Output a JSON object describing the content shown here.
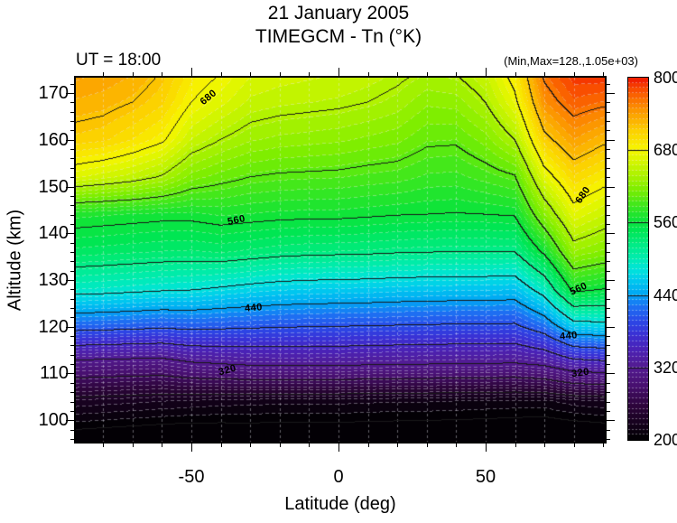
{
  "title": {
    "line1": "21 January 2005",
    "line2": "TIMEGCM - Tn (°K)"
  },
  "header": {
    "ut_label": "UT = 18:00",
    "minmax_label": "(Min,Max=128.,1.05e+03)"
  },
  "axes": {
    "x": {
      "label": "Latitude (deg)",
      "range": [
        -89.3,
        90.5
      ],
      "major_ticks": [
        -50,
        0,
        50
      ],
      "minor_tick_step": 10
    },
    "y": {
      "label": "Altitude (km)",
      "range": [
        95.4,
        173.3
      ],
      "major_ticks": [
        100,
        110,
        120,
        130,
        140,
        150,
        160,
        170
      ],
      "minor_tick_step": 2
    }
  },
  "colorbar": {
    "min": 200,
    "max": 800,
    "tick_values": [
      800,
      680,
      560,
      440,
      320,
      200
    ],
    "inner_line_values": [
      320,
      440,
      560,
      680
    ],
    "fill_step": 8.571,
    "colormap_stops": [
      [
        0.0,
        "#000000"
      ],
      [
        0.05,
        "#180220"
      ],
      [
        0.1,
        "#300640"
      ],
      [
        0.15,
        "#481070"
      ],
      [
        0.2,
        "#531b90"
      ],
      [
        0.25,
        "#4a22b6"
      ],
      [
        0.29,
        "#3a30d4"
      ],
      [
        0.33,
        "#2a4ae8"
      ],
      [
        0.37,
        "#1c74f4"
      ],
      [
        0.4,
        "#00a4f4"
      ],
      [
        0.44,
        "#00caee"
      ],
      [
        0.47,
        "#00e4da"
      ],
      [
        0.5,
        "#00ecb2"
      ],
      [
        0.54,
        "#00ec82"
      ],
      [
        0.58,
        "#00e650"
      ],
      [
        0.61,
        "#12e436"
      ],
      [
        0.65,
        "#44e81a"
      ],
      [
        0.69,
        "#7cee00"
      ],
      [
        0.73,
        "#acf200"
      ],
      [
        0.77,
        "#d8f600"
      ],
      [
        0.8,
        "#f6f600"
      ],
      [
        0.85,
        "#fcd200"
      ],
      [
        0.89,
        "#fcaa00"
      ],
      [
        0.93,
        "#fc7e00"
      ],
      [
        0.97,
        "#f84600"
      ],
      [
        1.0,
        "#ee1400"
      ]
    ]
  },
  "chart_data": {
    "type": "heatmap",
    "title": "TIMEGCM - Tn (°K)",
    "subtitle": "21 January 2005",
    "ut": "18:00",
    "xlabel": "Latitude (deg)",
    "ylabel": "Altitude (km)",
    "xlim": [
      -89.3,
      90.5
    ],
    "ylim": [
      95.4,
      173.3
    ],
    "zlim": [
      200,
      800
    ],
    "data_min": 128,
    "data_max": 1050,
    "contour_line_interval": 40,
    "labeled_contour_levels": [
      320,
      440,
      560,
      680
    ],
    "lat": [
      -90,
      -80,
      -70,
      -60,
      -50,
      -40,
      -30,
      -20,
      -10,
      0,
      10,
      20,
      30,
      40,
      50,
      60,
      70,
      80,
      90
    ],
    "alt": [
      96,
      104,
      112,
      120,
      128,
      136,
      144,
      152,
      160,
      168,
      176
    ],
    "temperature": [
      [
        190,
        188,
        186,
        184,
        183,
        184,
        185,
        185,
        185,
        185,
        184,
        184,
        183,
        183,
        182,
        181,
        179,
        180,
        182
      ],
      [
        232,
        230,
        228,
        226,
        224,
        222,
        221,
        220,
        220,
        220,
        219,
        218,
        218,
        217,
        216,
        215,
        215,
        222,
        225
      ],
      [
        310,
        308,
        306,
        305,
        316,
        320,
        324,
        325,
        325,
        325,
        323,
        322,
        321,
        320,
        320,
        318,
        325,
        345,
        350
      ],
      [
        412,
        410,
        408,
        405,
        408,
        406,
        404,
        402,
        401,
        400,
        399,
        398,
        397,
        396,
        396,
        395,
        418,
        465,
        470
      ],
      [
        492,
        490,
        487,
        484,
        482,
        477,
        472,
        468,
        466,
        465,
        464,
        462,
        461,
        460,
        460,
        458,
        495,
        568,
        560
      ],
      [
        540,
        538,
        536,
        534,
        533,
        536,
        532,
        528,
        526,
        525,
        524,
        522,
        521,
        520,
        520,
        520,
        565,
        628,
        618
      ],
      [
        572,
        570,
        568,
        566,
        566,
        570,
        568,
        566,
        565,
        565,
        563,
        561,
        560,
        559,
        560,
        562,
        620,
        670,
        655
      ],
      [
        665,
        658,
        650,
        638,
        616,
        607,
        600,
        597,
        596,
        595,
        592,
        590,
        584,
        583,
        590,
        598,
        668,
        704,
        690
      ],
      [
        712,
        708,
        697,
        684,
        654,
        640,
        630,
        626,
        624,
        622,
        618,
        614,
        604,
        603,
        616,
        640,
        712,
        740,
        725
      ],
      [
        730,
        727,
        720,
        708,
        680,
        666,
        652,
        648,
        646,
        644,
        640,
        634,
        622,
        624,
        640,
        673,
        748,
        772,
        765
      ],
      [
        748,
        742,
        736,
        722,
        696,
        684,
        668,
        663,
        660,
        658,
        654,
        648,
        642,
        646,
        658,
        696,
        770,
        795,
        800
      ]
    ],
    "contour_labels": [
      {
        "text": "680",
        "lat": -44.2,
        "alt": 169.0,
        "rot": -40
      },
      {
        "text": "560",
        "lat": -34.7,
        "alt": 142.7,
        "rot": -12
      },
      {
        "text": "440",
        "lat": -28.9,
        "alt": 124.0,
        "rot": -5
      },
      {
        "text": "320",
        "lat": -37.7,
        "alt": 110.6,
        "rot": -15
      },
      {
        "text": "680",
        "lat": 83.2,
        "alt": 148.2,
        "rot": -55
      },
      {
        "text": "560",
        "lat": 81.6,
        "alt": 128.0,
        "rot": -25
      },
      {
        "text": "440",
        "lat": 78.3,
        "alt": 118.0,
        "rot": -5
      },
      {
        "text": "320",
        "lat": 82.3,
        "alt": 110.1,
        "rot": -8
      }
    ]
  }
}
